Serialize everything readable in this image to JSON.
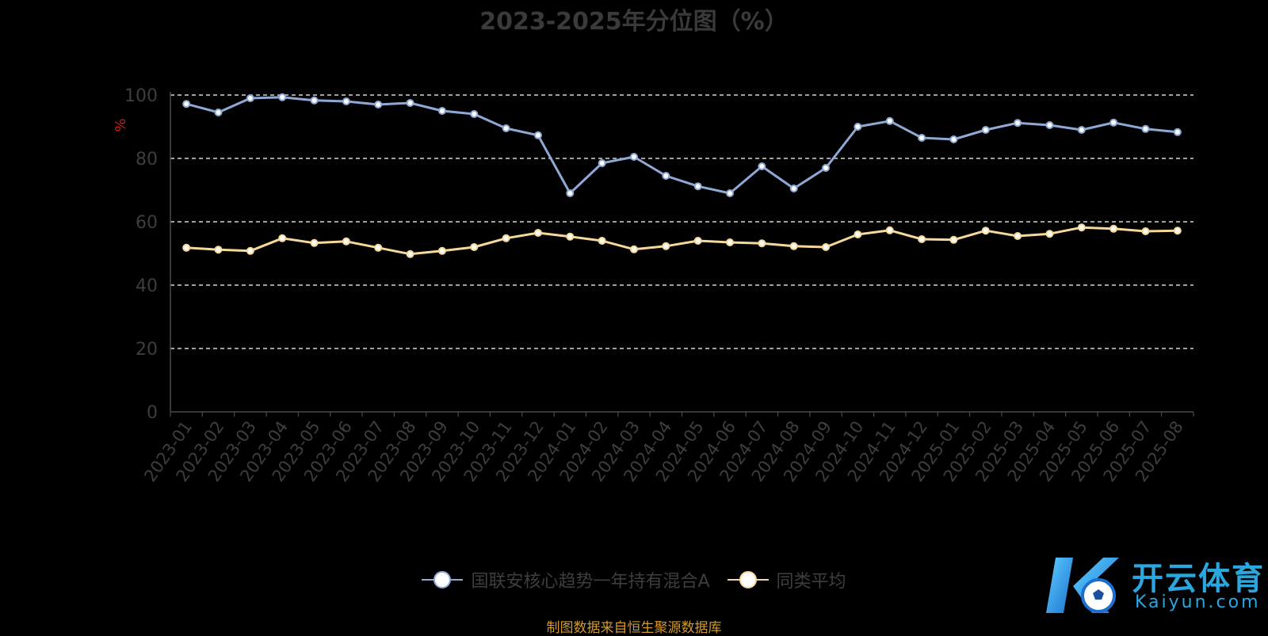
{
  "chart_data": {
    "type": "line",
    "title": "2023-2025年分位图（%）",
    "ylabel": "%",
    "ylim": [
      0,
      100
    ],
    "yticks": [
      0,
      20,
      40,
      60,
      80,
      100
    ],
    "grid": true,
    "legend_position": "bottom",
    "x": [
      "2023-01",
      "2023-02",
      "2023-03",
      "2023-04",
      "2023-05",
      "2023-06",
      "2023-07",
      "2023-08",
      "2023-09",
      "2023-10",
      "2023-11",
      "2023-12",
      "2024-01",
      "2024-02",
      "2024-03",
      "2024-04",
      "2024-05",
      "2024-06",
      "2024-07",
      "2024-08",
      "2024-09",
      "2024-10",
      "2024-11",
      "2024-12",
      "2025-01",
      "2025-02",
      "2025-03",
      "2025-04",
      "2025-05",
      "2025-06",
      "2025-07",
      "2025-08"
    ],
    "series": [
      {
        "name": "国联安核心趋势一年持有混合A",
        "color": "#8fa9d6",
        "values": [
          97.2,
          94.5,
          99.0,
          99.3,
          98.3,
          98.0,
          97.0,
          97.5,
          95.0,
          94.0,
          89.5,
          87.3,
          69.0,
          78.5,
          80.5,
          74.5,
          71.2,
          69.0,
          77.5,
          70.5,
          77.0,
          90.0,
          91.8,
          86.5,
          86.0,
          89.0,
          91.2,
          90.5,
          89.0,
          91.3,
          89.3,
          88.3
        ]
      },
      {
        "name": "同类平均",
        "color": "#f5d89a",
        "values": [
          51.8,
          51.2,
          50.8,
          54.8,
          53.3,
          53.8,
          51.8,
          49.8,
          50.8,
          52.0,
          54.8,
          56.5,
          55.3,
          54.0,
          51.3,
          52.3,
          54.0,
          53.5,
          53.2,
          52.3,
          52.0,
          56.0,
          57.3,
          54.5,
          54.3,
          57.2,
          55.5,
          56.2,
          58.2,
          57.8,
          57.0,
          57.2
        ]
      }
    ]
  },
  "footer": {
    "source": "制图数据来自恒生聚源数据库"
  },
  "watermark": {
    "brand_cn": "开云体育",
    "brand_en": "Kaiyun.com"
  }
}
